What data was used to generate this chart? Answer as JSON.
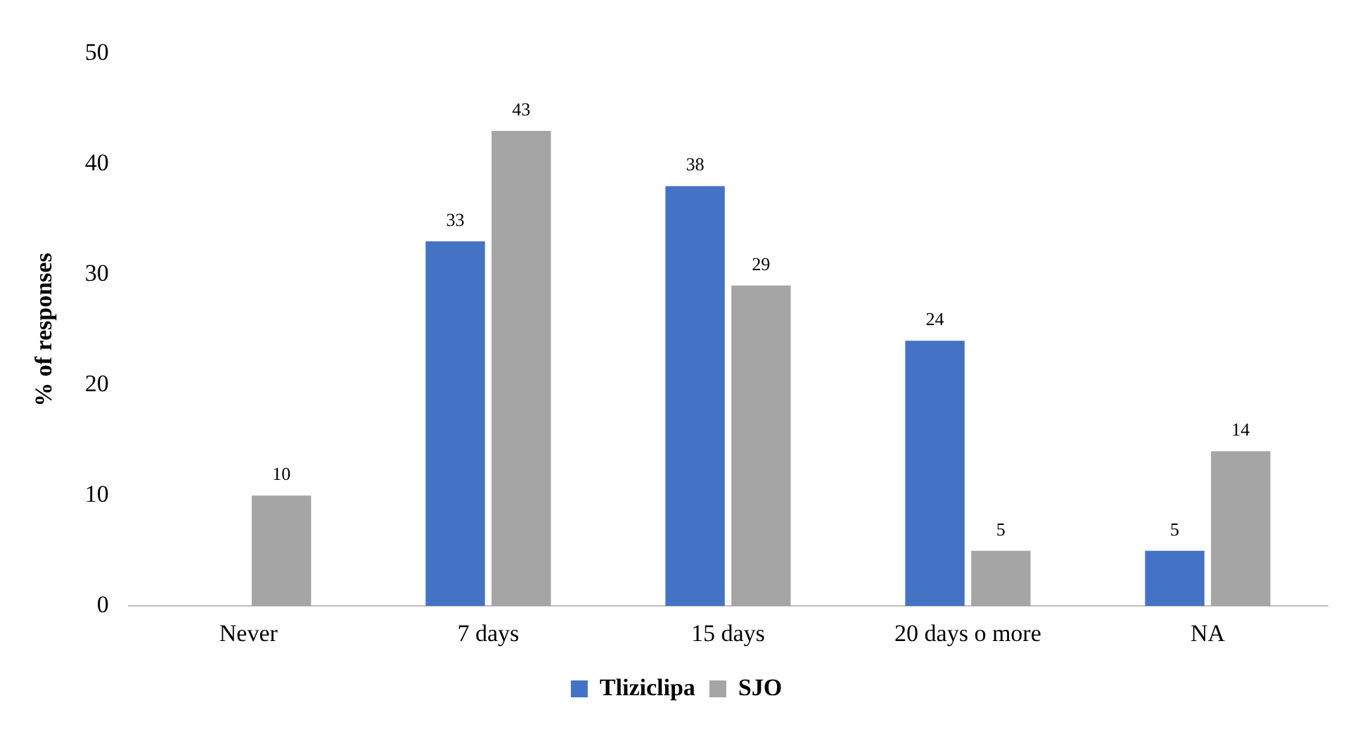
{
  "chart_data": {
    "type": "bar",
    "ylabel": "% of responses",
    "categories": [
      "Never",
      "7 days",
      "15 days",
      "20 days o more",
      "NA"
    ],
    "series": [
      {
        "name": "Tliziclipa",
        "color": "#4472c4",
        "values": [
          null,
          33,
          38,
          24,
          5
        ]
      },
      {
        "name": "SJO",
        "color": "#a5a5a5",
        "values": [
          10,
          43,
          29,
          5,
          14
        ]
      }
    ],
    "ylim": [
      0,
      50
    ],
    "yticks": [
      0,
      10,
      20,
      30,
      40,
      50
    ],
    "grid": false,
    "legend": "bottom",
    "data_labels": true
  }
}
